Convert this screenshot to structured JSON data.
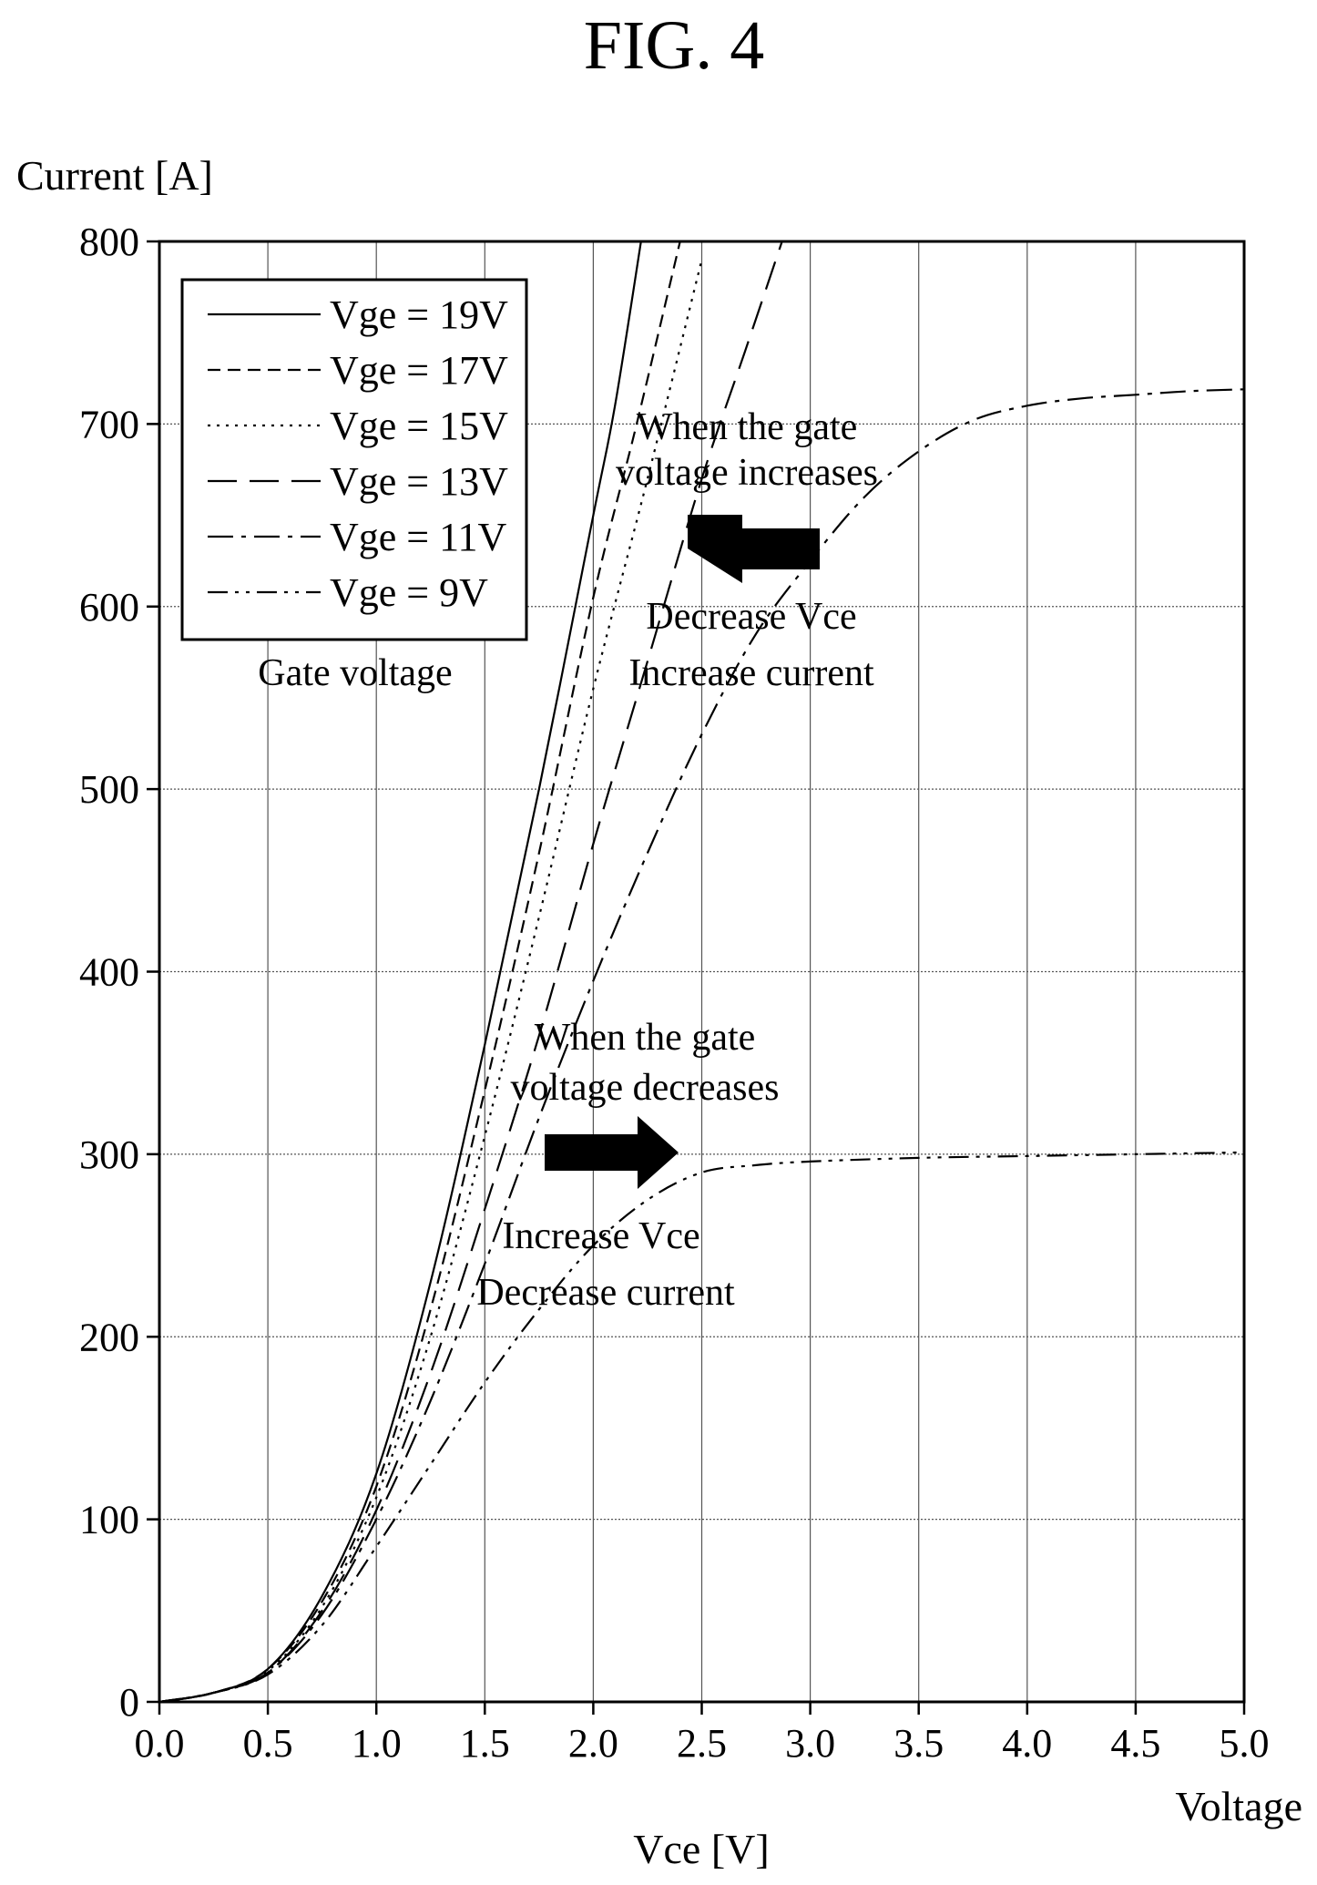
{
  "figure_title": "FIG. 4",
  "chart_data": {
    "type": "line",
    "title": "",
    "xlabel": "Vce [V]",
    "xlabel_secondary": "Voltage",
    "ylabel": "Current [A]",
    "xlim": [
      0,
      5
    ],
    "ylim": [
      0,
      800
    ],
    "xticks": [
      "0.0",
      "0.5",
      "1.0",
      "1.5",
      "2.0",
      "2.5",
      "3.0",
      "3.5",
      "4.0",
      "4.5",
      "5.0"
    ],
    "yticks": [
      "0",
      "100",
      "200",
      "300",
      "400",
      "500",
      "600",
      "700",
      "800"
    ],
    "grid": true,
    "legend_position": "top-left",
    "legend_title": "Gate voltage",
    "series": [
      {
        "name": "Vge = 19V",
        "dash": "solid",
        "x": [
          0,
          0.25,
          0.5,
          0.75,
          1.0,
          1.25,
          1.5,
          1.75,
          2.0,
          2.1,
          2.22
        ],
        "y": [
          0,
          5,
          18,
          58,
          125,
          230,
          360,
          500,
          650,
          710,
          800
        ]
      },
      {
        "name": "Vge = 17V",
        "dash": "dashed",
        "x": [
          0,
          0.25,
          0.5,
          0.75,
          1.0,
          1.25,
          1.5,
          1.75,
          2.0,
          2.2,
          2.4
        ],
        "y": [
          0,
          5,
          18,
          55,
          118,
          215,
          335,
          465,
          605,
          700,
          800
        ]
      },
      {
        "name": "Vge = 15V",
        "dash": "dotted",
        "x": [
          0,
          0.25,
          0.5,
          0.75,
          1.0,
          1.25,
          1.5,
          1.75,
          2.0,
          2.25,
          2.5
        ],
        "y": [
          0,
          5,
          17,
          52,
          112,
          200,
          310,
          430,
          555,
          670,
          790
        ]
      },
      {
        "name": "Vge = 13V",
        "dash": "long-dash",
        "x": [
          0,
          0.25,
          0.5,
          0.75,
          1.0,
          1.25,
          1.5,
          1.75,
          2.0,
          2.25,
          2.5,
          2.7,
          2.87
        ],
        "y": [
          0,
          5,
          16,
          50,
          105,
          180,
          270,
          365,
          470,
          570,
          670,
          740,
          800
        ]
      },
      {
        "name": "Vge = 11V",
        "dash": "dash-dot",
        "x": [
          0,
          0.25,
          0.5,
          0.75,
          1.0,
          1.25,
          1.5,
          1.75,
          2.0,
          2.25,
          2.5,
          2.75,
          3.0,
          3.25,
          3.5,
          3.75,
          4.0,
          4.25,
          4.5,
          4.75,
          5.0
        ],
        "y": [
          0,
          5,
          16,
          48,
          100,
          165,
          240,
          320,
          395,
          465,
          530,
          585,
          625,
          660,
          685,
          702,
          710,
          714,
          716,
          718,
          719
        ]
      },
      {
        "name": "Vge = 9V",
        "dash": "dash-dot-dot",
        "x": [
          0,
          0.25,
          0.5,
          0.75,
          1.0,
          1.25,
          1.5,
          1.75,
          2.0,
          2.25,
          2.5,
          2.75,
          3.0,
          3.5,
          4.0,
          4.5,
          5.0
        ],
        "y": [
          0,
          5,
          15,
          42,
          85,
          130,
          175,
          215,
          250,
          275,
          290,
          294,
          296,
          298,
          299,
          300,
          301
        ]
      }
    ],
    "annotations": [
      {
        "lines": [
          "When the gate",
          "voltage increases"
        ],
        "arrow": "left",
        "result": [
          "Decrease Vce",
          "Increase current"
        ]
      },
      {
        "lines": [
          "When the gate",
          "voltage decreases"
        ],
        "arrow": "right",
        "result": [
          "Increase Vce",
          "Decrease current"
        ]
      }
    ]
  }
}
